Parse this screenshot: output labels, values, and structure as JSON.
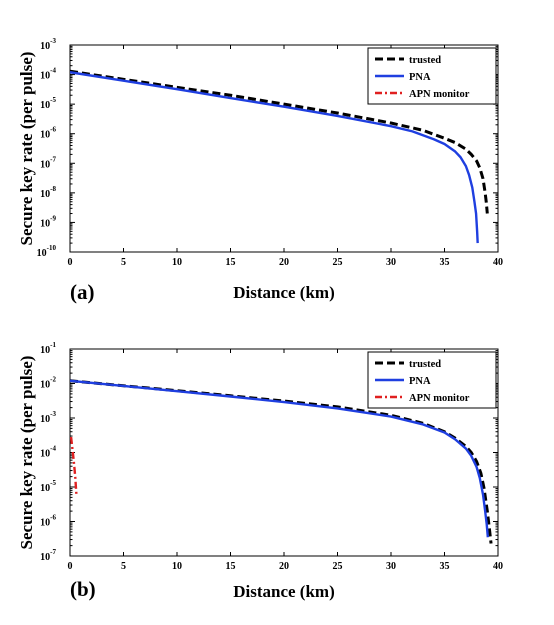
{
  "chart_data": [
    {
      "type": "line",
      "panel_label": "(a)",
      "xlabel": "Distance (km)",
      "ylabel": "Secure key rate (per pulse)",
      "xlim": [
        0,
        40
      ],
      "ylim_log10": [
        -10,
        -3
      ],
      "y_scale": "log",
      "x_ticks": [
        "0",
        "5",
        "10",
        "15",
        "20",
        "25",
        "30",
        "35",
        "40"
      ],
      "y_ticks": [
        {
          "base": "10",
          "exp": "-10"
        },
        {
          "base": "10",
          "exp": "-9"
        },
        {
          "base": "10",
          "exp": "-8"
        },
        {
          "base": "10",
          "exp": "-7"
        },
        {
          "base": "10",
          "exp": "-6"
        },
        {
          "base": "10",
          "exp": "-5"
        },
        {
          "base": "10",
          "exp": "-4"
        },
        {
          "base": "10",
          "exp": "-3"
        }
      ],
      "legend_position": "top-right",
      "series": [
        {
          "name": "trusted",
          "color": "#000000",
          "style": "dashed",
          "x": [
            0,
            5,
            10,
            15,
            20,
            25,
            30,
            33,
            35,
            36,
            37,
            37.5,
            38,
            38.3,
            38.6,
            38.8,
            38.9,
            39
          ],
          "y": [
            0.00013,
            6.9e-05,
            3.7e-05,
            2e-05,
            1e-05,
            5e-06,
            2.3e-06,
            1.3e-06,
            7e-07,
            5e-07,
            3e-07,
            2e-07,
            1.2e-07,
            7e-08,
            3e-08,
            1e-08,
            5e-09,
            2e-09
          ]
        },
        {
          "name": "PNA",
          "color": "#1f3fe0",
          "style": "solid",
          "x": [
            0,
            5,
            10,
            15,
            20,
            25,
            30,
            32,
            34,
            35,
            36,
            36.5,
            37,
            37.3,
            37.6,
            37.8,
            37.95,
            38.05,
            38.1
          ],
          "y": [
            0.00012,
            6.2e-05,
            3.2e-05,
            1.6e-05,
            8.2e-06,
            4e-06,
            1.8e-06,
            1.2e-06,
            6.5e-07,
            4.5e-07,
            2.5e-07,
            1.6e-07,
            8e-08,
            4e-08,
            1.5e-08,
            5e-09,
            2e-09,
            5e-10,
            2e-10
          ]
        },
        {
          "name": "APN monitor",
          "color": "#e02020",
          "style": "dashdot",
          "x": [],
          "y": []
        }
      ]
    },
    {
      "type": "line",
      "panel_label": "(b)",
      "xlabel": "Distance (km)",
      "ylabel": "Secure key rate (per pulse)",
      "xlim": [
        0,
        40
      ],
      "ylim_log10": [
        -7,
        -1
      ],
      "y_scale": "log",
      "x_ticks": [
        "0",
        "5",
        "10",
        "15",
        "20",
        "25",
        "30",
        "35",
        "40"
      ],
      "y_ticks": [
        {
          "base": "10",
          "exp": "-7"
        },
        {
          "base": "10",
          "exp": "-6"
        },
        {
          "base": "10",
          "exp": "-5"
        },
        {
          "base": "10",
          "exp": "-4"
        },
        {
          "base": "10",
          "exp": "-3"
        },
        {
          "base": "10",
          "exp": "-2"
        },
        {
          "base": "10",
          "exp": "-1"
        }
      ],
      "legend_position": "top-right",
      "series": [
        {
          "name": "trusted",
          "color": "#000000",
          "style": "dashed",
          "x": [
            0,
            5,
            10,
            15,
            20,
            25,
            30,
            33,
            35,
            36,
            37,
            37.5,
            38,
            38.4,
            38.7,
            39,
            39.2,
            39.35
          ],
          "y": [
            0.012,
            0.0086,
            0.0062,
            0.0044,
            0.0031,
            0.0021,
            0.0012,
            0.0007,
            0.0004,
            0.00026,
            0.00015,
            0.0001,
            5.5e-05,
            2.5e-05,
            9e-06,
            2e-06,
            6e-07,
            2.3e-07
          ]
        },
        {
          "name": "PNA",
          "color": "#1f3fe0",
          "style": "solid",
          "x": [
            0,
            5,
            10,
            15,
            20,
            25,
            30,
            33,
            35,
            36,
            37,
            37.5,
            38,
            38.3,
            38.6,
            38.8,
            38.95,
            39.05
          ],
          "y": [
            0.012,
            0.0085,
            0.006,
            0.0042,
            0.0029,
            0.0019,
            0.0011,
            0.00065,
            0.00038,
            0.00024,
            0.00013,
            8e-05,
            3.8e-05,
            1.8e-05,
            6e-06,
            2e-06,
            8e-07,
            3.5e-07
          ]
        },
        {
          "name": "APN monitor",
          "color": "#e02020",
          "style": "dashdot",
          "x": [
            0.1,
            0.2,
            0.3,
            0.4,
            0.5,
            0.55,
            0.6
          ],
          "y": [
            0.00028,
            0.00015,
            8e-05,
            4e-05,
            1.8e-05,
            1e-05,
            6e-06
          ]
        }
      ]
    }
  ]
}
